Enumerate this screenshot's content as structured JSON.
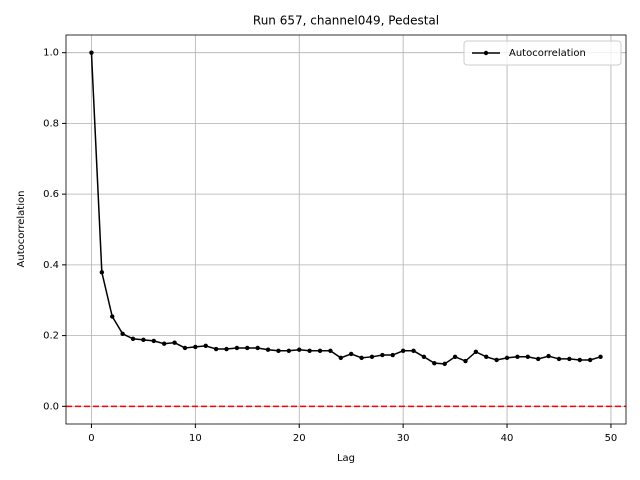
{
  "chart_data": {
    "type": "line",
    "title": "Run 657, channel049, Pedestal",
    "xlabel": "Lag",
    "ylabel": "Autocorrelation",
    "x": [
      0,
      1,
      2,
      3,
      4,
      5,
      6,
      7,
      8,
      9,
      10,
      11,
      12,
      13,
      14,
      15,
      16,
      17,
      18,
      19,
      20,
      21,
      22,
      23,
      24,
      25,
      26,
      27,
      28,
      29,
      30,
      31,
      32,
      33,
      34,
      35,
      36,
      37,
      38,
      39,
      40,
      41,
      42,
      43,
      44,
      45,
      46,
      47,
      48,
      49
    ],
    "series": [
      {
        "name": "Autocorrelation",
        "color": "#000000",
        "values": [
          1.0,
          0.379,
          0.254,
          0.205,
          0.191,
          0.188,
          0.185,
          0.177,
          0.18,
          0.165,
          0.168,
          0.171,
          0.162,
          0.162,
          0.165,
          0.165,
          0.165,
          0.16,
          0.157,
          0.157,
          0.16,
          0.157,
          0.157,
          0.157,
          0.137,
          0.148,
          0.137,
          0.14,
          0.145,
          0.145,
          0.157,
          0.157,
          0.14,
          0.122,
          0.12,
          0.14,
          0.128,
          0.154,
          0.14,
          0.131,
          0.137,
          0.14,
          0.14,
          0.134,
          0.142,
          0.134,
          0.134,
          0.131,
          0.131,
          0.14
        ]
      }
    ],
    "hline": {
      "value": 0,
      "color": "#ff0000"
    },
    "xlim": [
      -2.45,
      51.45
    ],
    "xticks": [
      0,
      10,
      20,
      30,
      40,
      50
    ],
    "ylim": [
      -0.05,
      1.05
    ],
    "yticks": [
      {
        "value": 0,
        "label": "0.0"
      },
      {
        "value": 0.2,
        "label": "0.2"
      },
      {
        "value": 0.4,
        "label": "0.4"
      },
      {
        "value": 0.6,
        "label": "0.6"
      },
      {
        "value": 0.8,
        "label": "0.8"
      },
      {
        "value": 1,
        "label": "1.0"
      }
    ],
    "grid": true,
    "legend": "upper-right"
  }
}
